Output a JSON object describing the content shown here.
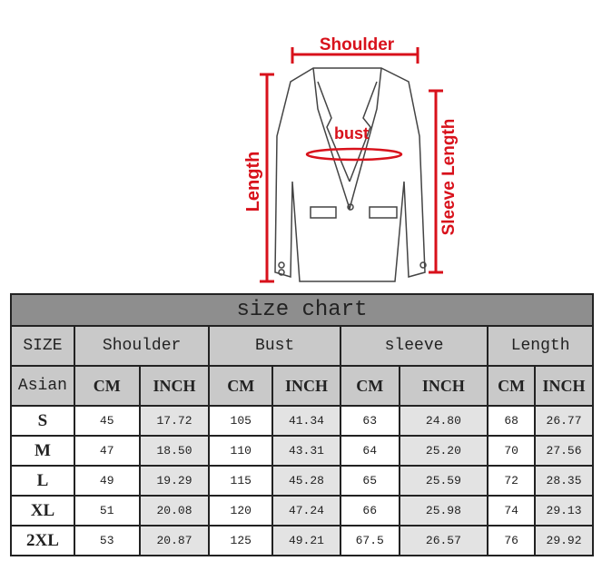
{
  "figure": {
    "shoulder_label": "Shoulder",
    "bust_label": "bust",
    "length_label": "Length",
    "sleeve_label": "Sleeve Length",
    "accent_color": "#d8111b"
  },
  "table": {
    "title": "size chart",
    "header": {
      "size": "SIZE",
      "groups": [
        "Shoulder",
        "Bust",
        "sleeve",
        "Length"
      ],
      "region": "Asian",
      "units": [
        "CM",
        "INCH",
        "CM",
        "INCH",
        "CM",
        "INCH",
        "CM",
        "INCH"
      ]
    },
    "rows": [
      [
        "S",
        "45",
        "17.72",
        "105",
        "41.34",
        "63",
        "24.80",
        "68",
        "26.77"
      ],
      [
        "M",
        "47",
        "18.50",
        "110",
        "43.31",
        "64",
        "25.20",
        "70",
        "27.56"
      ],
      [
        "L",
        "49",
        "19.29",
        "115",
        "45.28",
        "65",
        "25.59",
        "72",
        "28.35"
      ],
      [
        "XL",
        "51",
        "20.08",
        "120",
        "47.24",
        "66",
        "25.98",
        "74",
        "29.13"
      ],
      [
        "2XL",
        "53",
        "20.87",
        "125",
        "49.21",
        "67.5",
        "26.57",
        "76",
        "29.92"
      ]
    ]
  }
}
